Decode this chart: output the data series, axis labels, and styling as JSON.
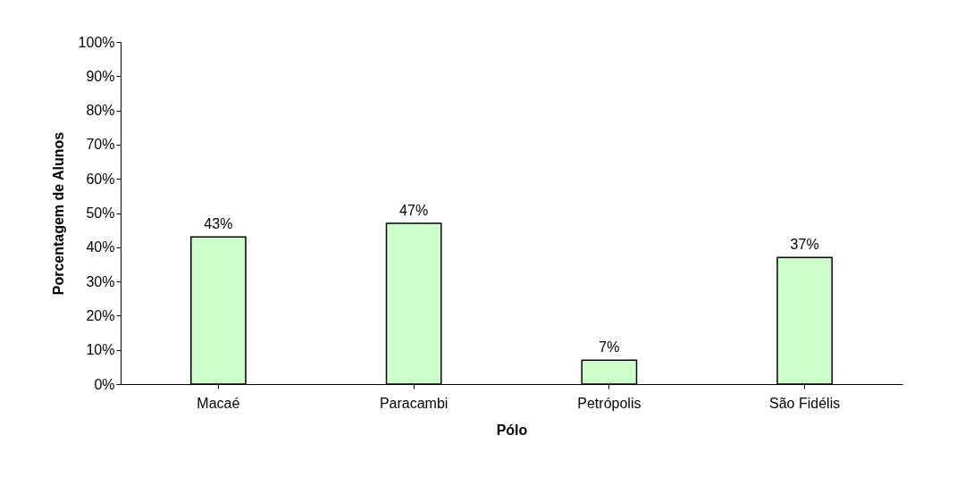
{
  "chart_data": {
    "type": "bar",
    "xlabel": "Pólo",
    "ylabel": "Porcentagem de Alunos",
    "categories": [
      "Macaé",
      "Paracambi",
      "Petrópolis",
      "São Fidélis"
    ],
    "values": [
      43,
      47,
      7,
      37
    ],
    "value_labels": [
      "43%",
      "47%",
      "7%",
      "37%"
    ],
    "color": "#ccffcc",
    "ylim": [
      0,
      100
    ],
    "yticks": [
      {
        "value": 0,
        "label": "0%"
      },
      {
        "value": 10,
        "label": "10%"
      },
      {
        "value": 20,
        "label": "20%"
      },
      {
        "value": 30,
        "label": "30%"
      },
      {
        "value": 40,
        "label": "40%"
      },
      {
        "value": 50,
        "label": "50%"
      },
      {
        "value": 60,
        "label": "60%"
      },
      {
        "value": 70,
        "label": "70%"
      },
      {
        "value": 80,
        "label": "80%"
      },
      {
        "value": 90,
        "label": "90%"
      },
      {
        "value": 100,
        "label": "100%"
      }
    ],
    "grid": false
  }
}
